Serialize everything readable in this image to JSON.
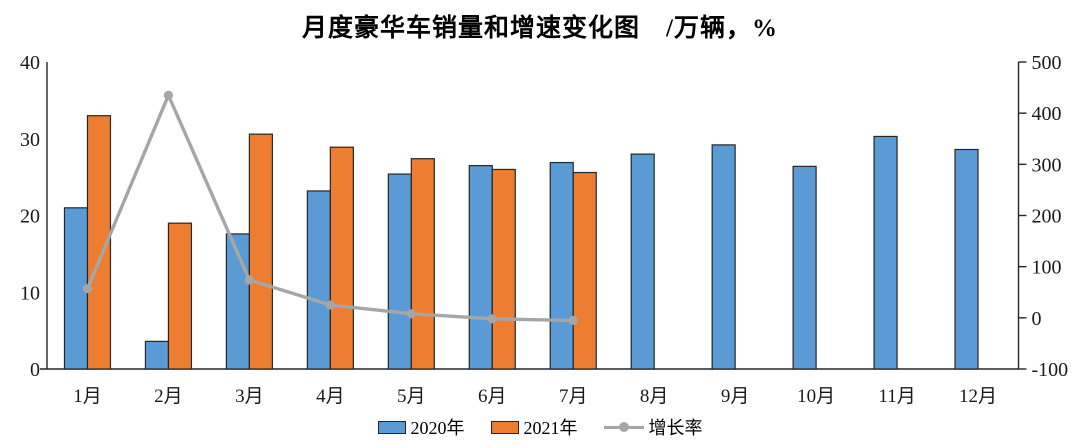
{
  "chart": {
    "title": "月度豪华车销量和增速变化图　/万辆，%",
    "legend": [
      {
        "label": "2020年",
        "color": "#5B9BD5",
        "type": "bar"
      },
      {
        "label": "2021年",
        "color": "#ED7D31",
        "type": "bar"
      },
      {
        "label": "增长率",
        "color": "#A6A6A6",
        "type": "line"
      }
    ]
  },
  "chart_data": {
    "type": "bar+line",
    "title": "月度豪华车销量和增速变化图　/万辆，%",
    "categories": [
      "1月",
      "2月",
      "3月",
      "4月",
      "5月",
      "6月",
      "7月",
      "8月",
      "9月",
      "10月",
      "11月",
      "12月"
    ],
    "series": [
      {
        "name": "2020年",
        "type": "bar",
        "axis": "left",
        "color": "#5B9BD5",
        "values": [
          21.0,
          3.6,
          17.6,
          23.2,
          25.4,
          26.5,
          26.9,
          28.0,
          29.2,
          26.4,
          30.3,
          28.6
        ]
      },
      {
        "name": "2021年",
        "type": "bar",
        "axis": "left",
        "color": "#ED7D31",
        "values": [
          33.0,
          19.0,
          30.6,
          28.9,
          27.4,
          26.0,
          25.6,
          null,
          null,
          null,
          null,
          null
        ]
      },
      {
        "name": "增长率",
        "type": "line",
        "axis": "right",
        "color": "#A6A6A6",
        "values": [
          57,
          435,
          74,
          25,
          8,
          -2,
          -5,
          null,
          null,
          null,
          null,
          null
        ]
      }
    ],
    "left_axis": {
      "min": 0,
      "max": 40,
      "step": 10,
      "ticks": [
        0,
        10,
        20,
        30,
        40
      ]
    },
    "right_axis": {
      "min": -100,
      "max": 500,
      "step": 100,
      "ticks": [
        -100,
        0,
        100,
        200,
        300,
        400,
        500
      ]
    },
    "grid": false,
    "legend_position": "bottom",
    "axis_color": "#262626",
    "bar_border_color": "#262626"
  }
}
